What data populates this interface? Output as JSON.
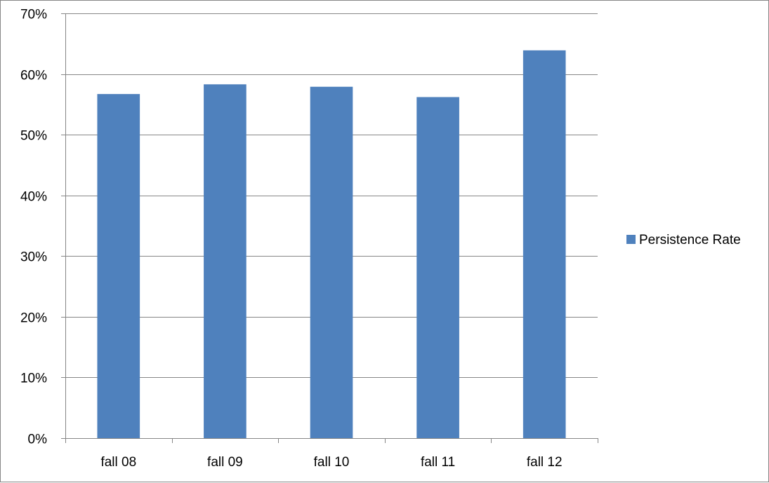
{
  "chart_data": {
    "type": "bar",
    "title": "",
    "xlabel": "",
    "ylabel": "",
    "categories": [
      "fall 08",
      "fall 09",
      "fall 10",
      "fall 11",
      "fall 12"
    ],
    "series": [
      {
        "name": "Persistence Rate",
        "color": "#4F81BD",
        "values": [
          0.567,
          0.583,
          0.579,
          0.562,
          0.639
        ]
      }
    ],
    "ylim": [
      0,
      0.7
    ],
    "yticks": [
      "0%",
      "10%",
      "20%",
      "30%",
      "40%",
      "50%",
      "60%",
      "70%"
    ],
    "grid": "horizontal",
    "legend_position": "right",
    "gridline_color": "#868686",
    "axis_color": "#868686"
  }
}
